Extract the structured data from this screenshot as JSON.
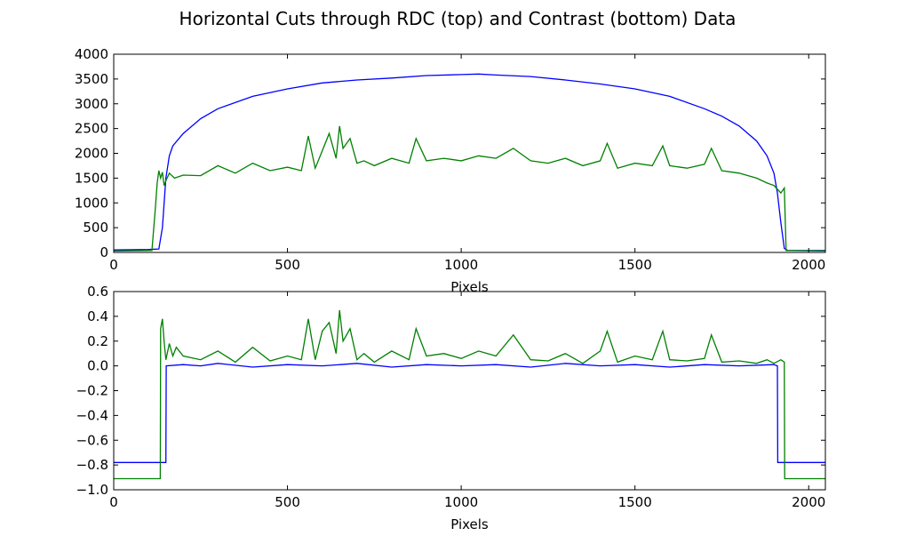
{
  "figure": {
    "title": "Horizontal Cuts through RDC (top) and Contrast (bottom) Data"
  },
  "chart_data": [
    {
      "type": "line",
      "title": "Horizontal Cuts through RDC (top)",
      "xlabel": "Pixels",
      "ylabel": "",
      "xlim": [
        0,
        2048
      ],
      "ylim": [
        0,
        4000
      ],
      "xticks": [
        "0",
        "500",
        "1000",
        "1500",
        "2000"
      ],
      "yticks": [
        "0",
        "500",
        "1000",
        "1500",
        "2000",
        "2500",
        "3000",
        "3500",
        "4000"
      ],
      "series": [
        {
          "name": "blue",
          "color": "#0000ff",
          "x": [
            0,
            100,
            130,
            140,
            150,
            160,
            170,
            200,
            250,
            300,
            400,
            500,
            600,
            700,
            800,
            900,
            1000,
            1050,
            1100,
            1200,
            1300,
            1400,
            1500,
            1600,
            1700,
            1750,
            1800,
            1850,
            1880,
            1900,
            1910,
            1920,
            1930,
            1940,
            2048
          ],
          "y": [
            50,
            60,
            70,
            500,
            1500,
            1950,
            2150,
            2400,
            2700,
            2900,
            3150,
            3300,
            3420,
            3480,
            3520,
            3570,
            3590,
            3600,
            3580,
            3550,
            3480,
            3400,
            3300,
            3150,
            2900,
            2750,
            2550,
            2250,
            1950,
            1600,
            1200,
            600,
            80,
            40,
            40
          ]
        },
        {
          "name": "green",
          "color": "#008000",
          "x": [
            0,
            110,
            120,
            125,
            130,
            135,
            140,
            145,
            150,
            160,
            175,
            200,
            250,
            300,
            350,
            400,
            450,
            500,
            540,
            560,
            580,
            600,
            620,
            640,
            650,
            660,
            680,
            700,
            720,
            750,
            800,
            850,
            870,
            900,
            950,
            1000,
            1050,
            1100,
            1150,
            1200,
            1250,
            1300,
            1350,
            1400,
            1420,
            1450,
            1500,
            1550,
            1580,
            1600,
            1650,
            1700,
            1720,
            1750,
            1800,
            1850,
            1880,
            1900,
            1920,
            1930,
            1935,
            2048
          ],
          "y": [
            30,
            40,
            900,
            1400,
            1650,
            1500,
            1620,
            1350,
            1450,
            1600,
            1500,
            1560,
            1550,
            1750,
            1600,
            1800,
            1650,
            1720,
            1650,
            2350,
            1700,
            2050,
            2400,
            1900,
            2550,
            2100,
            2300,
            1800,
            1850,
            1750,
            1900,
            1800,
            2300,
            1850,
            1900,
            1850,
            1950,
            1900,
            2100,
            1850,
            1800,
            1900,
            1750,
            1850,
            2200,
            1700,
            1800,
            1750,
            2150,
            1750,
            1700,
            1780,
            2100,
            1650,
            1600,
            1500,
            1400,
            1350,
            1200,
            1300,
            40,
            30
          ]
        }
      ]
    },
    {
      "type": "line",
      "title": "Contrast (bottom)",
      "xlabel": "Pixels",
      "ylabel": "",
      "xlim": [
        0,
        2048
      ],
      "ylim": [
        -1.0,
        0.6
      ],
      "xticks": [
        "0",
        "500",
        "1000",
        "1500",
        "2000"
      ],
      "yticks": [
        "−1.0",
        "−0.8",
        "−0.6",
        "−0.4",
        "−0.2",
        "0.0",
        "0.2",
        "0.4",
        "0.6"
      ],
      "series": [
        {
          "name": "blue",
          "color": "#0000ff",
          "x": [
            0,
            150,
            151,
            200,
            250,
            300,
            400,
            500,
            600,
            700,
            800,
            900,
            1000,
            1100,
            1200,
            1300,
            1400,
            1500,
            1600,
            1700,
            1800,
            1900,
            1910,
            1911,
            2048
          ],
          "y": [
            -0.78,
            -0.78,
            0.0,
            0.01,
            0.0,
            0.02,
            -0.01,
            0.01,
            0.0,
            0.02,
            -0.01,
            0.01,
            0.0,
            0.01,
            -0.01,
            0.02,
            0.0,
            0.01,
            -0.01,
            0.01,
            0.0,
            0.01,
            0.0,
            -0.78,
            -0.78
          ]
        },
        {
          "name": "green",
          "color": "#008000",
          "x": [
            0,
            134,
            135,
            140,
            145,
            150,
            160,
            170,
            180,
            200,
            250,
            300,
            350,
            400,
            450,
            500,
            540,
            560,
            580,
            600,
            620,
            640,
            650,
            660,
            680,
            700,
            720,
            750,
            800,
            850,
            870,
            900,
            950,
            1000,
            1050,
            1100,
            1150,
            1200,
            1250,
            1300,
            1350,
            1400,
            1420,
            1450,
            1500,
            1550,
            1580,
            1600,
            1650,
            1700,
            1720,
            1750,
            1800,
            1850,
            1880,
            1900,
            1920,
            1930,
            1931,
            2048
          ],
          "y": [
            -0.91,
            -0.91,
            0.3,
            0.38,
            0.2,
            0.05,
            0.18,
            0.08,
            0.15,
            0.08,
            0.05,
            0.12,
            0.03,
            0.15,
            0.04,
            0.08,
            0.05,
            0.38,
            0.05,
            0.28,
            0.35,
            0.1,
            0.45,
            0.2,
            0.3,
            0.05,
            0.1,
            0.03,
            0.12,
            0.05,
            0.3,
            0.08,
            0.1,
            0.06,
            0.12,
            0.08,
            0.25,
            0.05,
            0.04,
            0.1,
            0.02,
            0.12,
            0.28,
            0.03,
            0.08,
            0.05,
            0.28,
            0.05,
            0.04,
            0.06,
            0.25,
            0.03,
            0.04,
            0.02,
            0.05,
            0.02,
            0.05,
            0.03,
            -0.91,
            -0.91
          ]
        }
      ]
    }
  ]
}
